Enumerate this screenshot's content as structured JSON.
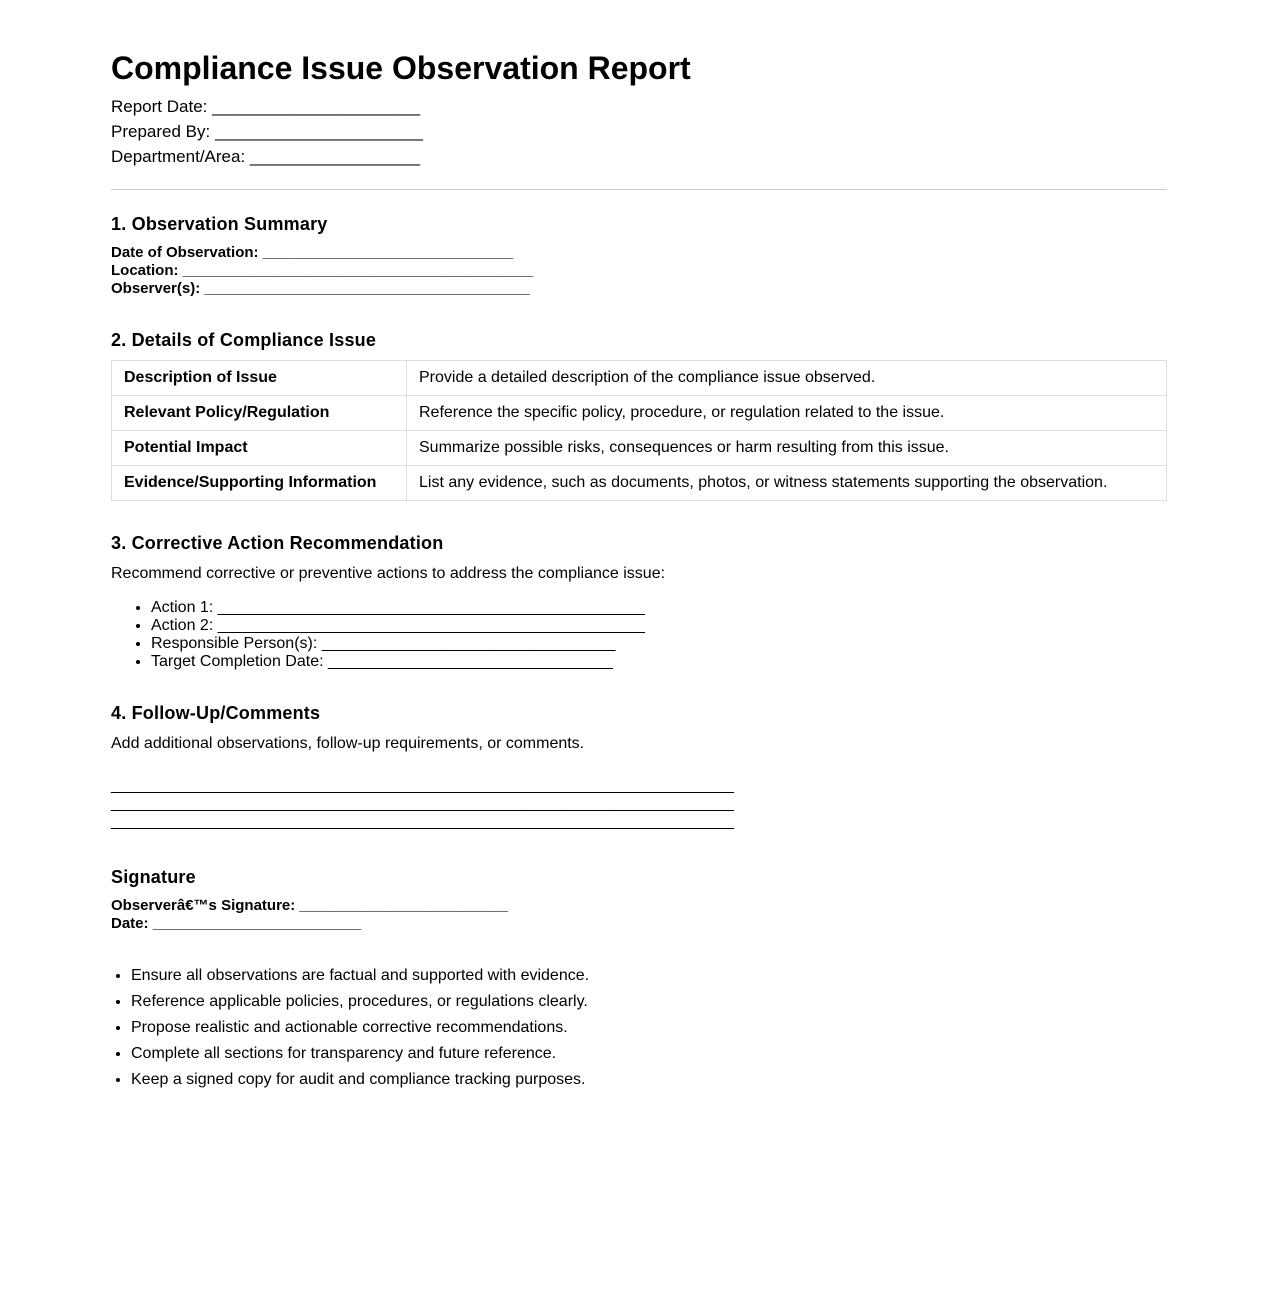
{
  "title": "Compliance Issue Observation Report",
  "meta": [
    {
      "label": "Report Date:",
      "blank": "______________________"
    },
    {
      "label": "Prepared By:",
      "blank": "______________________"
    },
    {
      "label": "Department/Area:",
      "blank": "__________________"
    }
  ],
  "section1": {
    "heading": "1. Observation Summary",
    "fields": [
      {
        "label": "Date of Observation:",
        "blank": "______________________________"
      },
      {
        "label": "Location:",
        "blank": "__________________________________________"
      },
      {
        "label": "Observer(s):",
        "blank": "_______________________________________"
      }
    ]
  },
  "section2": {
    "heading": "2. Details of Compliance Issue",
    "rows": [
      {
        "key": "Description of Issue",
        "value": "Provide a detailed description of the compliance issue observed."
      },
      {
        "key": "Relevant Policy/Regulation",
        "value": "Reference the specific policy, procedure, or regulation related to the issue."
      },
      {
        "key": "Potential Impact",
        "value": "Summarize possible risks, consequences or harm resulting from this issue."
      },
      {
        "key": "Evidence/Supporting Information",
        "value": "List any evidence, such as documents, photos, or witness statements supporting the observation."
      }
    ]
  },
  "section3": {
    "heading": "3. Corrective Action Recommendation",
    "intro": "Recommend corrective or preventive actions to address the compliance issue:",
    "items": [
      {
        "label": "Action 1:",
        "blank": "________________________________________________"
      },
      {
        "label": "Action 2:",
        "blank": "________________________________________________"
      },
      {
        "label": "Responsible Person(s):",
        "blank": "_________________________________"
      },
      {
        "label": "Target Completion Date:",
        "blank": "________________________________"
      }
    ]
  },
  "section4": {
    "heading": "4. Follow-Up/Comments",
    "intro": "Add additional observations, follow-up requirements, or comments.",
    "lines": [
      "______________________________________________________________________",
      "______________________________________________________________________",
      "______________________________________________________________________"
    ]
  },
  "signature": {
    "heading": "Signature",
    "fields": [
      {
        "label": "Observerâ€™s Signature:",
        "blank": "_________________________"
      },
      {
        "label": "Date:",
        "blank": "_________________________"
      }
    ]
  },
  "notes": [
    "Ensure all observations are factual and supported with evidence.",
    "Reference applicable policies, procedures, or regulations clearly.",
    "Propose realistic and actionable corrective recommendations.",
    "Complete all sections for transparency and future reference.",
    "Keep a signed copy for audit and compliance tracking purposes."
  ]
}
